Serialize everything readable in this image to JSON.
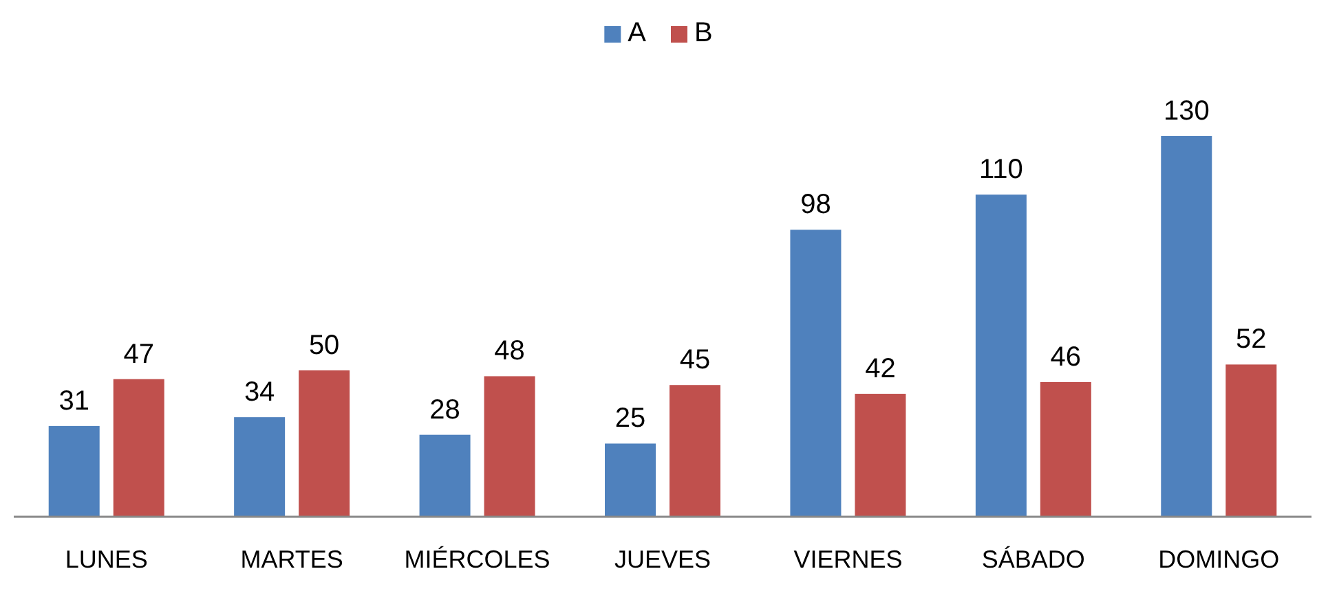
{
  "chart_data": {
    "type": "bar",
    "categories": [
      "LUNES",
      "MARTES",
      "MIÉRCOLES",
      "JUEVES",
      "VIERNES",
      "SÁBADO",
      "DOMINGO"
    ],
    "series": [
      {
        "name": "A",
        "color": "#4f81bd",
        "values": [
          31,
          34,
          28,
          25,
          98,
          110,
          130
        ]
      },
      {
        "name": "B",
        "color": "#c0504d",
        "values": [
          47,
          50,
          48,
          45,
          42,
          46,
          52
        ]
      }
    ],
    "data_labels": true,
    "legend": "top",
    "grid": false
  }
}
